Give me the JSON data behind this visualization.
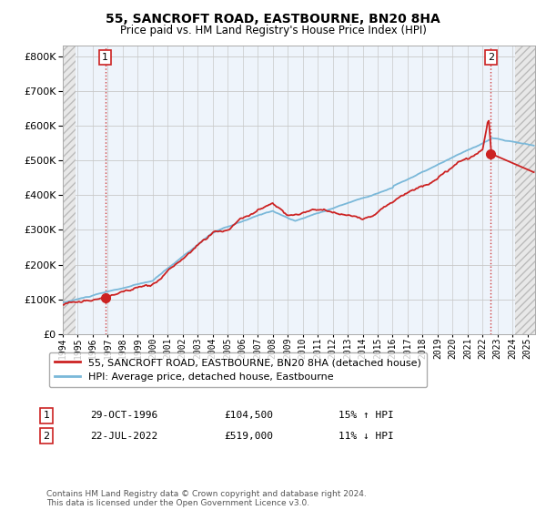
{
  "title": "55, SANCROFT ROAD, EASTBOURNE, BN20 8HA",
  "subtitle": "Price paid vs. HM Land Registry's House Price Index (HPI)",
  "ytick_vals": [
    0,
    100000,
    200000,
    300000,
    400000,
    500000,
    600000,
    700000,
    800000
  ],
  "ylim": [
    0,
    830000
  ],
  "xlim_start": 1994.0,
  "xlim_end": 2025.5,
  "t1_date": 1996.83,
  "t1_price": 104500,
  "t2_date": 2022.55,
  "t2_price": 519000,
  "hpi_color": "#7ab8d9",
  "price_color": "#cc2222",
  "legend_line1": "55, SANCROFT ROAD, EASTBOURNE, BN20 8HA (detached house)",
  "legend_line2": "HPI: Average price, detached house, Eastbourne",
  "table_row1": [
    "1",
    "29-OCT-1996",
    "£104,500",
    "15% ↑ HPI"
  ],
  "table_row2": [
    "2",
    "22-JUL-2022",
    "£519,000",
    "11% ↓ HPI"
  ],
  "footer": "Contains HM Land Registry data © Crown copyright and database right 2024.\nThis data is licensed under the Open Government Licence v3.0.",
  "hatch_color": "#e8e8e8",
  "grid_color": "#c8c8c8",
  "chart_bg": "#eef4fb"
}
